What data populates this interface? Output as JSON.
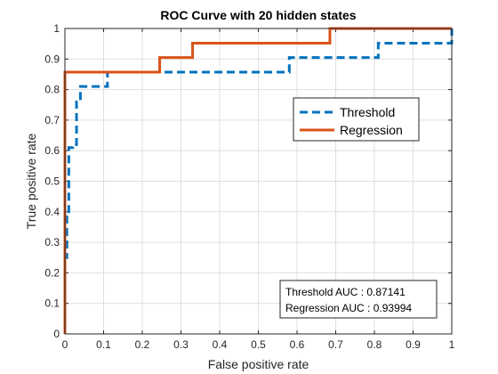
{
  "chart_data": {
    "type": "line",
    "title": "ROC Curve with 20 hidden states",
    "xlabel": "False positive rate",
    "ylabel": "True positive rate",
    "xlim": [
      0,
      1
    ],
    "ylim": [
      0,
      1
    ],
    "xticks": [
      0,
      0.1,
      0.2,
      0.3,
      0.4,
      0.5,
      0.6,
      0.7,
      0.8,
      0.9,
      1
    ],
    "yticks": [
      0,
      0.1,
      0.2,
      0.3,
      0.4,
      0.5,
      0.6,
      0.7,
      0.8,
      0.9,
      1
    ],
    "xtick_labels": [
      "0",
      "0.1",
      "0.2",
      "0.3",
      "0.4",
      "0.5",
      "0.6",
      "0.7",
      "0.8",
      "0.9",
      "1"
    ],
    "ytick_labels": [
      "0",
      "0.1",
      "0.2",
      "0.3",
      "0.4",
      "0.5",
      "0.6",
      "0.7",
      "0.8",
      "0.9",
      "1"
    ],
    "grid": true,
    "legend_position": "upper-right",
    "series": [
      {
        "name": "Threshold",
        "color": "#0072BD",
        "style": "dashed",
        "x": [
          0,
          0,
          0.005,
          0.005,
          0.01,
          0.01,
          0.02,
          0.02,
          0.03,
          0.03,
          0.04,
          0.04,
          0.11,
          0.11,
          0.58,
          0.58,
          0.81,
          0.81,
          1,
          1
        ],
        "y": [
          0,
          0.25,
          0.25,
          0.4,
          0.4,
          0.61,
          0.61,
          0.62,
          0.62,
          0.76,
          0.76,
          0.81,
          0.81,
          0.857,
          0.857,
          0.905,
          0.905,
          0.952,
          0.952,
          1
        ]
      },
      {
        "name": "Regression",
        "color": "#D95319",
        "style": "solid",
        "x": [
          0,
          0,
          0.245,
          0.245,
          0.33,
          0.33,
          0.685,
          0.685,
          1
        ],
        "y": [
          0,
          0.857,
          0.857,
          0.905,
          0.905,
          0.952,
          0.952,
          1,
          1
        ]
      }
    ],
    "annotations": [
      "Threshold AUC : 0.87141",
      "Regression AUC : 0.93994"
    ]
  }
}
